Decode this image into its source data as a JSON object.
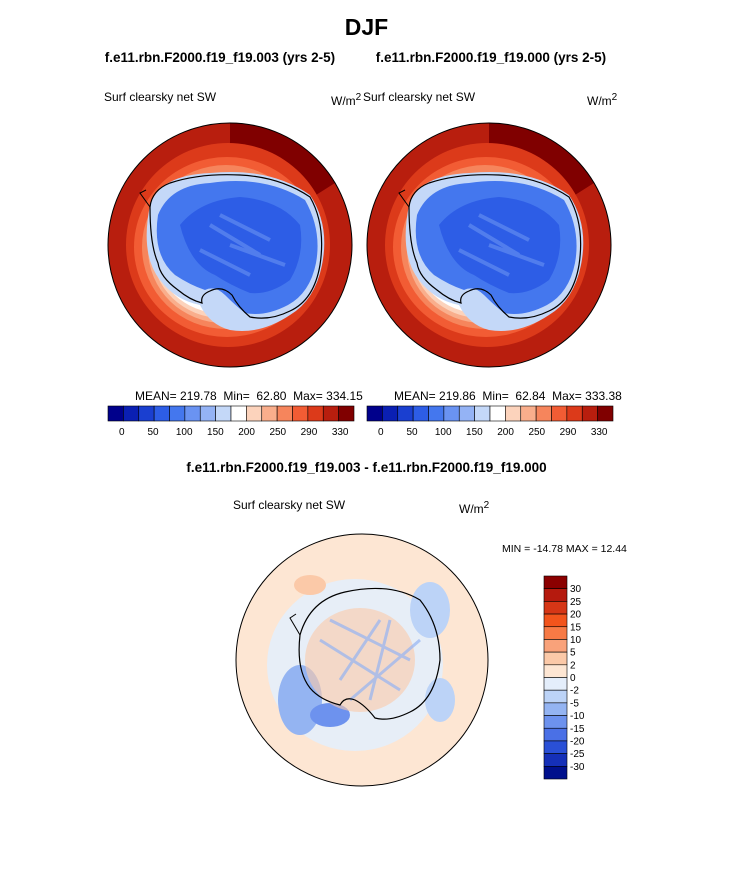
{
  "title": "DJF",
  "chart_data": [
    {
      "type": "heatmap",
      "title": "f.e11.rbn.F2000.f19_f19.003 (yrs 2-5)",
      "variable": "Surf clearsky net SW",
      "units": "W/m",
      "units_exp": "2",
      "stats": {
        "mean_label": "MEAN=",
        "mean": "219.78",
        "min_label": "Min=",
        "min": "62.80",
        "max_label": "Max=",
        "max": "334.15"
      },
      "colorbar": {
        "colors": [
          "#00008b",
          "#0a1fb3",
          "#1a3fd0",
          "#2d5de6",
          "#4477ee",
          "#6a93f2",
          "#94b3f5",
          "#c4d8f8",
          "#ffffff",
          "#fcd3bc",
          "#f9ae8c",
          "#f6855c",
          "#f25c34",
          "#dc3a1a",
          "#b81e0e",
          "#800000"
        ],
        "ticks": [
          "0",
          "50",
          "100",
          "150",
          "200",
          "250",
          "290",
          "330"
        ]
      }
    },
    {
      "type": "heatmap",
      "title": "f.e11.rbn.F2000.f19_f19.000 (yrs 2-5)",
      "variable": "Surf clearsky net SW",
      "units": "W/m",
      "units_exp": "2",
      "stats": {
        "mean_label": "MEAN=",
        "mean": "219.86",
        "min_label": "Min=",
        "min": "62.84",
        "max_label": "Max=",
        "max": "333.38"
      },
      "colorbar": {
        "colors": [
          "#00008b",
          "#0a1fb3",
          "#1a3fd0",
          "#2d5de6",
          "#4477ee",
          "#6a93f2",
          "#94b3f5",
          "#c4d8f8",
          "#ffffff",
          "#fcd3bc",
          "#f9ae8c",
          "#f6855c",
          "#f25c34",
          "#dc3a1a",
          "#b81e0e",
          "#800000"
        ],
        "ticks": [
          "0",
          "50",
          "100",
          "150",
          "200",
          "250",
          "290",
          "330"
        ]
      }
    },
    {
      "type": "heatmap",
      "title": "f.e11.rbn.F2000.f19_f19.003 - f.e11.rbn.F2000.f19_f19.000",
      "variable": "Surf clearsky net SW",
      "units": "W/m",
      "units_exp": "2",
      "stats": {
        "text": "MIN = -14.78 MAX =  12.44"
      },
      "colorbar": {
        "colors": [
          "#8b0000",
          "#b51a0e",
          "#d63616",
          "#f2541c",
          "#f77a45",
          "#f9a27a",
          "#fbc9a8",
          "#fde6d3",
          "#e4eefb",
          "#bcd3f7",
          "#94b4f2",
          "#6d92ee",
          "#4a70e6",
          "#2a50d6",
          "#1530b8",
          "#00108c"
        ],
        "ticks": [
          "30",
          "25",
          "20",
          "15",
          "10",
          "5",
          "2",
          "0",
          "-2",
          "-5",
          "-10",
          "-15",
          "-20",
          "-25",
          "-30"
        ]
      }
    }
  ]
}
